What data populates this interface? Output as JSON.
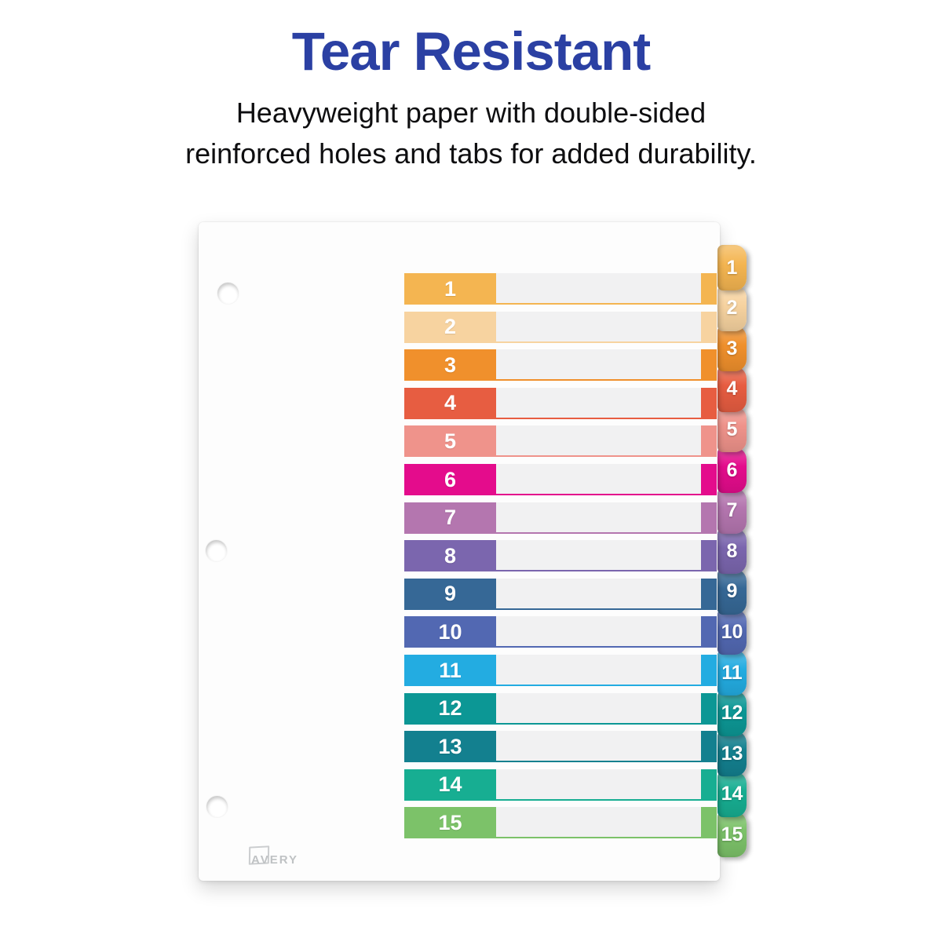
{
  "header": {
    "title": "Tear Resistant",
    "title_color": "#2B40A3",
    "subtitle_line1": "Heavyweight paper with double-sided",
    "subtitle_line2": "reinforced holes and tabs for added durability.",
    "text_color": "#0E0E10"
  },
  "divider": {
    "brand": "AVERY",
    "tab_count": 15,
    "hole_count": 3,
    "rows": [
      {
        "label": "1",
        "color": "#F4B551"
      },
      {
        "label": "2",
        "color": "#F7D3A0"
      },
      {
        "label": "3",
        "color": "#F0902C"
      },
      {
        "label": "4",
        "color": "#E75D41"
      },
      {
        "label": "5",
        "color": "#EF938B"
      },
      {
        "label": "6",
        "color": "#E40C8C"
      },
      {
        "label": "7",
        "color": "#B476AF"
      },
      {
        "label": "8",
        "color": "#7B66AE"
      },
      {
        "label": "9",
        "color": "#366896"
      },
      {
        "label": "10",
        "color": "#5268B2"
      },
      {
        "label": "11",
        "color": "#23ACE1"
      },
      {
        "label": "12",
        "color": "#0C9795"
      },
      {
        "label": "13",
        "color": "#13808F"
      },
      {
        "label": "14",
        "color": "#17AE92"
      },
      {
        "label": "15",
        "color": "#7CC269"
      }
    ]
  }
}
